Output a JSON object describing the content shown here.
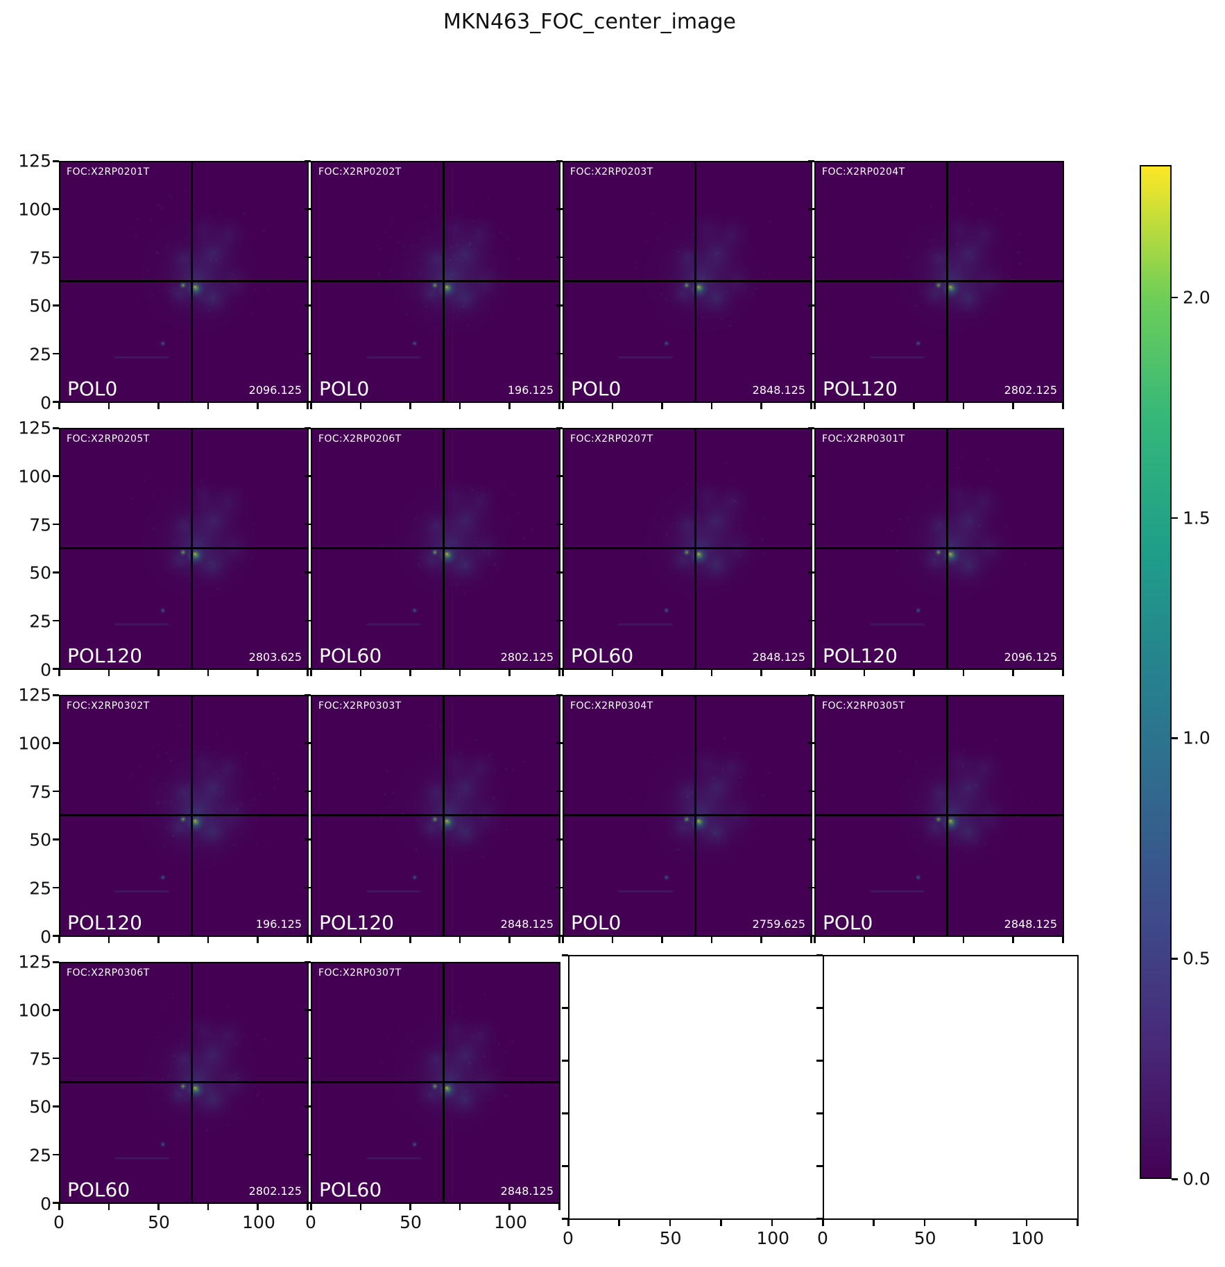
{
  "figure": {
    "title": "MKN463_FOC_center_image"
  },
  "panels": [
    {
      "id": "FOC:X2RP0201T",
      "pol": "POL0",
      "exposure": "2096.125"
    },
    {
      "id": "FOC:X2RP0202T",
      "pol": "POL0",
      "exposure": "196.125"
    },
    {
      "id": "FOC:X2RP0203T",
      "pol": "POL0",
      "exposure": "2848.125"
    },
    {
      "id": "FOC:X2RP0204T",
      "pol": "POL120",
      "exposure": "2802.125"
    },
    {
      "id": "FOC:X2RP0205T",
      "pol": "POL120",
      "exposure": "2803.625"
    },
    {
      "id": "FOC:X2RP0206T",
      "pol": "POL60",
      "exposure": "2802.125"
    },
    {
      "id": "FOC:X2RP0207T",
      "pol": "POL60",
      "exposure": "2848.125"
    },
    {
      "id": "FOC:X2RP0301T",
      "pol": "POL120",
      "exposure": "2096.125"
    },
    {
      "id": "FOC:X2RP0302T",
      "pol": "POL120",
      "exposure": "196.125"
    },
    {
      "id": "FOC:X2RP0303T",
      "pol": "POL120",
      "exposure": "2848.125"
    },
    {
      "id": "FOC:X2RP0304T",
      "pol": "POL0",
      "exposure": "2759.625"
    },
    {
      "id": "FOC:X2RP0305T",
      "pol": "POL0",
      "exposure": "2848.125"
    },
    {
      "id": "FOC:X2RP0306T",
      "pol": "POL60",
      "exposure": "2802.125"
    },
    {
      "id": "FOC:X2RP0307T",
      "pol": "POL60",
      "exposure": "2848.125"
    },
    {
      "empty": true
    },
    {
      "empty": true
    }
  ],
  "axes": {
    "x_tick_labels": [
      "0",
      "50",
      "100"
    ],
    "x_tick_values": [
      0,
      50,
      100
    ],
    "y_tick_labels": [
      "125",
      "100",
      "75",
      "50",
      "25",
      "0"
    ],
    "y_tick_values": [
      125,
      100,
      75,
      50,
      25,
      0
    ],
    "x_range": [
      0,
      125
    ],
    "y_range": [
      0,
      125
    ]
  },
  "colorbar": {
    "tick_labels": [
      "2.0",
      "1.5",
      "1.0",
      "0.5",
      "0.0"
    ],
    "tick_values": [
      2.0,
      1.5,
      1.0,
      0.5,
      0.0
    ],
    "vmin": 0.0,
    "vmax": 2.3,
    "colormap": "viridis"
  },
  "colors": {
    "background": "#ffffff",
    "image_base": "#440154",
    "crosshair": "#000000",
    "panel_text": "#ffffff",
    "viridis_stops": [
      "#440154",
      "#482878",
      "#3e4989",
      "#31688e",
      "#26828e",
      "#1f9e89",
      "#35b779",
      "#6ece58",
      "#b5de2b",
      "#fde725"
    ]
  },
  "chart_data": {
    "type": "heatmap",
    "title": "MKN463_FOC_center_image",
    "colormap": "viridis",
    "grid_layout": "4 rows x 4 columns; 14 image panels, last 2 cells are empty axes",
    "x_range": [
      0,
      125
    ],
    "y_range": [
      0,
      125
    ],
    "x_tick_values": [
      0,
      50,
      100
    ],
    "y_tick_values": [
      0,
      25,
      50,
      75,
      100,
      125
    ],
    "colorbar_range": [
      0.0,
      2.3
    ],
    "colorbar_tick_values": [
      0.0,
      0.5,
      1.0,
      1.5,
      2.0
    ],
    "crosshair_data_xy": [
      63,
      63
    ],
    "panels": [
      {
        "dataset": "X2RP0201T",
        "polarizer": "POL0",
        "value": 2096.125
      },
      {
        "dataset": "X2RP0202T",
        "polarizer": "POL0",
        "value": 196.125
      },
      {
        "dataset": "X2RP0203T",
        "polarizer": "POL0",
        "value": 2848.125
      },
      {
        "dataset": "X2RP0204T",
        "polarizer": "POL120",
        "value": 2802.125
      },
      {
        "dataset": "X2RP0205T",
        "polarizer": "POL120",
        "value": 2803.625
      },
      {
        "dataset": "X2RP0206T",
        "polarizer": "POL60",
        "value": 2802.125
      },
      {
        "dataset": "X2RP0207T",
        "polarizer": "POL60",
        "value": 2848.125
      },
      {
        "dataset": "X2RP0301T",
        "polarizer": "POL120",
        "value": 2096.125
      },
      {
        "dataset": "X2RP0302T",
        "polarizer": "POL120",
        "value": 196.125
      },
      {
        "dataset": "X2RP0303T",
        "polarizer": "POL120",
        "value": 2848.125
      },
      {
        "dataset": "X2RP0304T",
        "polarizer": "POL0",
        "value": 2759.625
      },
      {
        "dataset": "X2RP0305T",
        "polarizer": "POL0",
        "value": 2848.125
      },
      {
        "dataset": "X2RP0306T",
        "polarizer": "POL60",
        "value": 2802.125
      },
      {
        "dataset": "X2RP0307T",
        "polarizer": "POL60",
        "value": 2848.125
      }
    ]
  }
}
